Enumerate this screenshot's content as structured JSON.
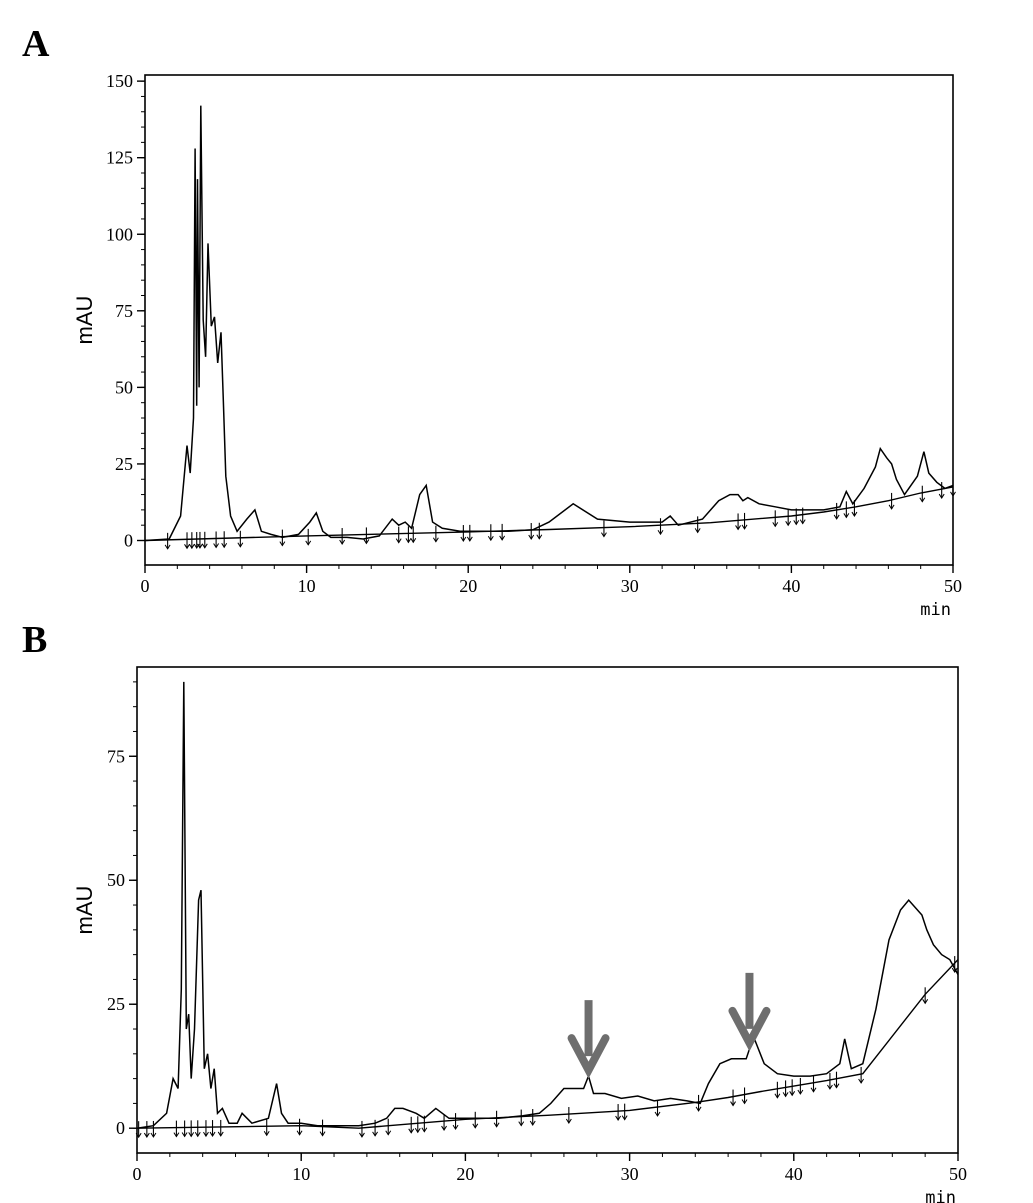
{
  "panels": [
    {
      "label": "A"
    },
    {
      "label": "B"
    }
  ],
  "chart_data": [
    {
      "type": "line",
      "panel": "A",
      "ylabel": "mAU",
      "xunit": "min",
      "xlim": [
        0,
        50
      ],
      "ylim": [
        -8,
        152
      ],
      "xticks": [
        0,
        10,
        20,
        30,
        40,
        50
      ],
      "yticks": [
        0,
        25,
        50,
        75,
        100,
        125,
        150
      ],
      "grid": false,
      "series": [
        {
          "role": "chromatogram",
          "x": [
            0,
            1.5,
            2.2,
            2.6,
            2.8,
            3.0,
            3.1,
            3.2,
            3.25,
            3.35,
            3.45,
            3.6,
            3.75,
            3.9,
            4.1,
            4.3,
            4.5,
            4.7,
            4.85,
            5.0,
            5.3,
            5.7,
            6.3,
            6.8,
            7.2,
            7.8,
            8.5,
            9.5,
            10.2,
            10.6,
            11.0,
            11.5,
            12.5,
            13.5,
            14.5,
            15.3,
            15.7,
            16.1,
            16.5,
            17.0,
            17.4,
            17.8,
            18.4,
            19.5,
            21,
            22.5,
            24,
            25,
            26.5,
            28,
            30,
            32,
            32.5,
            33,
            34.5,
            35.5,
            36.2,
            36.7,
            37,
            37.3,
            38,
            39,
            40,
            41,
            42,
            43,
            43.4,
            43.8,
            44.5,
            45.2,
            45.5,
            45.9,
            46.2,
            46.5,
            47,
            47.8,
            48.2,
            48.5,
            49,
            49.5,
            50
          ],
          "y": [
            0,
            0.5,
            8,
            31,
            22,
            40,
            128,
            44,
            118,
            50,
            142,
            72,
            60,
            97,
            70,
            73,
            58,
            68,
            45,
            21,
            8,
            3,
            7,
            10,
            3,
            2,
            1,
            2,
            6,
            9,
            3,
            1,
            1,
            0.5,
            1.5,
            7,
            5,
            6,
            4,
            15,
            18,
            6,
            4,
            3,
            3,
            3,
            3.5,
            6,
            12,
            7,
            6,
            6,
            8,
            5,
            7,
            13,
            15,
            15,
            13,
            14,
            12,
            11,
            10,
            10,
            10,
            11,
            16,
            12,
            17,
            24,
            30,
            27,
            25,
            20,
            15,
            21,
            29,
            22,
            19,
            17,
            18
          ]
        },
        {
          "role": "baseline",
          "x": [
            0,
            10,
            20,
            25,
            30,
            35,
            40,
            42,
            44,
            46,
            48,
            50
          ],
          "y": [
            0,
            1.5,
            2.8,
            3.6,
            4.5,
            5.8,
            8,
            9.3,
            11,
            13,
            15.5,
            17.5
          ]
        }
      ],
      "markers": [
        1.4,
        2.6,
        2.9,
        3.2,
        3.4,
        3.7,
        4.4,
        4.9,
        5.9,
        8.5,
        10.1,
        12.2,
        13.7,
        15.7,
        16.3,
        16.6,
        18.0,
        19.7,
        20.1,
        21.4,
        22.1,
        23.9,
        24.4,
        28.4,
        31.9,
        34.2,
        36.7,
        37.1,
        39.0,
        39.8,
        40.3,
        40.7,
        42.8,
        43.4,
        43.9,
        46.2,
        48.1,
        49.3,
        50.0
      ]
    },
    {
      "type": "line",
      "panel": "B",
      "ylabel": "mAU",
      "xunit": "min",
      "xlim": [
        0,
        50
      ],
      "ylim": [
        -5,
        93
      ],
      "xticks": [
        0,
        10,
        20,
        30,
        40,
        50
      ],
      "yticks": [
        0,
        25,
        50,
        75
      ],
      "grid": false,
      "series": [
        {
          "role": "chromatogram",
          "x": [
            0,
            1.0,
            1.8,
            2.2,
            2.5,
            2.7,
            2.85,
            3.0,
            3.15,
            3.3,
            3.5,
            3.75,
            3.9,
            4.1,
            4.3,
            4.5,
            4.7,
            4.9,
            5.2,
            5.6,
            6.1,
            6.4,
            7.0,
            8.0,
            8.5,
            8.8,
            9.2,
            10,
            11,
            12,
            13.5,
            14.5,
            15.2,
            15.7,
            16.2,
            17.0,
            17.5,
            18.2,
            19,
            20,
            21,
            22,
            23.5,
            24.5,
            25.2,
            26,
            26.8,
            27.2,
            27.5,
            27.8,
            28.5,
            29.5,
            30.5,
            31.5,
            32.5,
            33.5,
            34.3,
            34.8,
            35.5,
            36.2,
            36.8,
            37.1,
            37.3,
            37.6,
            38.2,
            39,
            40,
            41,
            42,
            42.8,
            43.1,
            43.5,
            44.2,
            45,
            45.8,
            46.5,
            47,
            47.8,
            48.1,
            48.5,
            49,
            49.5,
            50
          ],
          "y": [
            0,
            0.5,
            3,
            10,
            8,
            28,
            90,
            20,
            23,
            10,
            20,
            46,
            48,
            12,
            15,
            8,
            12,
            3,
            4,
            1,
            1,
            3,
            1,
            2,
            9,
            3,
            1,
            1,
            0.5,
            0.5,
            0.5,
            1,
            2,
            4,
            4,
            3,
            2,
            4,
            2,
            2,
            2,
            2,
            2.5,
            3,
            5,
            8,
            8,
            8,
            10.5,
            7,
            7,
            6,
            6.5,
            5.5,
            6,
            5.5,
            5,
            9,
            13,
            14,
            14,
            14,
            16,
            18,
            13,
            11,
            10.5,
            10.5,
            11,
            13,
            18,
            12,
            13,
            24,
            38,
            44,
            46,
            43,
            40,
            37,
            35,
            34,
            31
          ]
        },
        {
          "role": "baseline",
          "x": [
            0,
            10,
            13.5,
            20,
            25,
            30,
            34,
            36,
            38,
            40,
            42,
            44.2,
            48,
            50
          ],
          "y": [
            0,
            0.5,
            0,
            1.8,
            2.6,
            3.6,
            5.2,
            6.2,
            7.4,
            8.5,
            9.6,
            11,
            27,
            34
          ]
        }
      ],
      "markers": [
        0.1,
        0.6,
        1.0,
        2.4,
        2.9,
        3.3,
        3.7,
        4.2,
        4.6,
        5.1,
        7.9,
        9.9,
        11.3,
        13.7,
        14.5,
        15.3,
        16.7,
        17.1,
        17.5,
        18.7,
        19.4,
        20.6,
        21.9,
        23.4,
        24.1,
        26.3,
        29.3,
        29.7,
        31.7,
        34.2,
        36.3,
        37.0,
        39.0,
        39.5,
        39.9,
        40.4,
        41.2,
        42.2,
        42.6,
        44.1,
        48.0,
        49.8
      ]
    }
  ],
  "annotations": {
    "arrows": [
      {
        "panel": "B",
        "x": 27.5,
        "color": "#6e6e6e"
      },
      {
        "panel": "B",
        "x": 37.3,
        "color": "#6e6e6e"
      }
    ]
  }
}
